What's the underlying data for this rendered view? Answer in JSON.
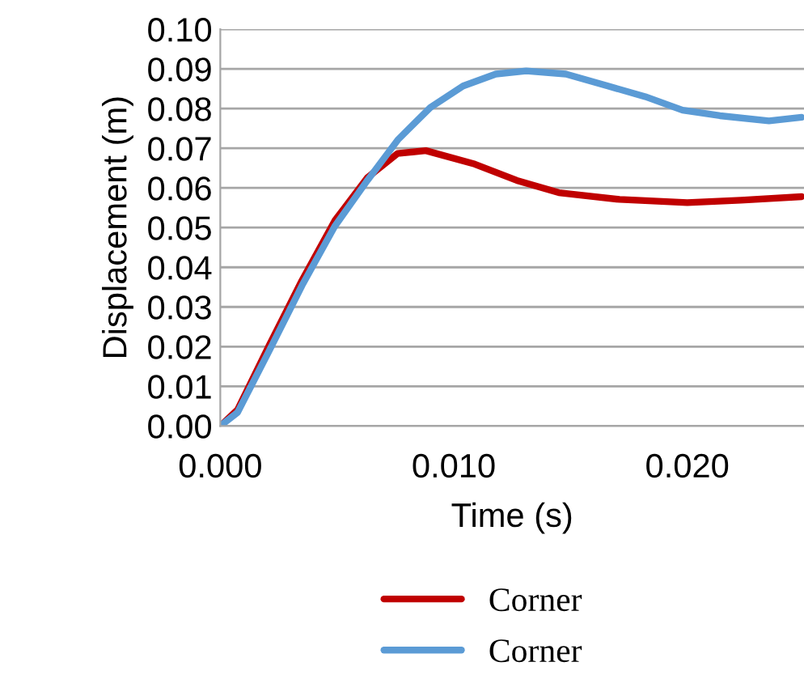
{
  "chart_data": {
    "type": "line",
    "xlabel": "Time (s)",
    "ylabel": "Displacement (m)",
    "xlim": [
      0,
      0.025
    ],
    "xticks": [
      {
        "value": 0,
        "label": "0.000"
      },
      {
        "value": 0.01,
        "label": "0.010"
      },
      {
        "value": 0.02,
        "label": "0.020"
      }
    ],
    "ylim": [
      0,
      0.1
    ],
    "yticks": [
      {
        "value": 0,
        "label": "0.00"
      },
      {
        "value": 0.01,
        "label": "0.01"
      },
      {
        "value": 0.02,
        "label": "0.02"
      },
      {
        "value": 0.03,
        "label": "0.03"
      },
      {
        "value": 0.04,
        "label": "0.04"
      },
      {
        "value": 0.05,
        "label": "0.05"
      },
      {
        "value": 0.06,
        "label": "0.06"
      },
      {
        "value": 0.07,
        "label": "0.07"
      },
      {
        "value": 0.08,
        "label": "0.08"
      },
      {
        "value": 0.09,
        "label": "0.09"
      },
      {
        "value": 0.1,
        "label": "0.10"
      }
    ],
    "grid": "y",
    "legend": "bottom",
    "marker": "none",
    "line_style": "solid",
    "series": [
      {
        "name": "Corner",
        "color": "#c00000",
        "x": [
          0,
          0.00074,
          0.0021,
          0.0035,
          0.0049,
          0.0063,
          0.0076,
          0.0088,
          0.0109,
          0.0127,
          0.0145,
          0.0171,
          0.02,
          0.0223,
          0.0249
        ],
        "values": [
          0,
          0.0041,
          0.0204,
          0.0367,
          0.0517,
          0.0626,
          0.0687,
          0.0694,
          0.066,
          0.0619,
          0.0588,
          0.0571,
          0.0563,
          0.0569,
          0.0578
        ]
      },
      {
        "name": "Corner",
        "color": "#5b9bd5",
        "x": [
          0,
          0.00074,
          0.0021,
          0.0035,
          0.0049,
          0.0063,
          0.0076,
          0.009,
          0.0104,
          0.0118,
          0.0131,
          0.0148,
          0.0166,
          0.0182,
          0.0198,
          0.0214,
          0.0235,
          0.0249
        ],
        "values": [
          0,
          0.0034,
          0.019,
          0.0354,
          0.0503,
          0.0619,
          0.0721,
          0.0803,
          0.0857,
          0.0887,
          0.0895,
          0.0887,
          0.0857,
          0.083,
          0.0796,
          0.0782,
          0.0769,
          0.0778
        ]
      }
    ]
  }
}
